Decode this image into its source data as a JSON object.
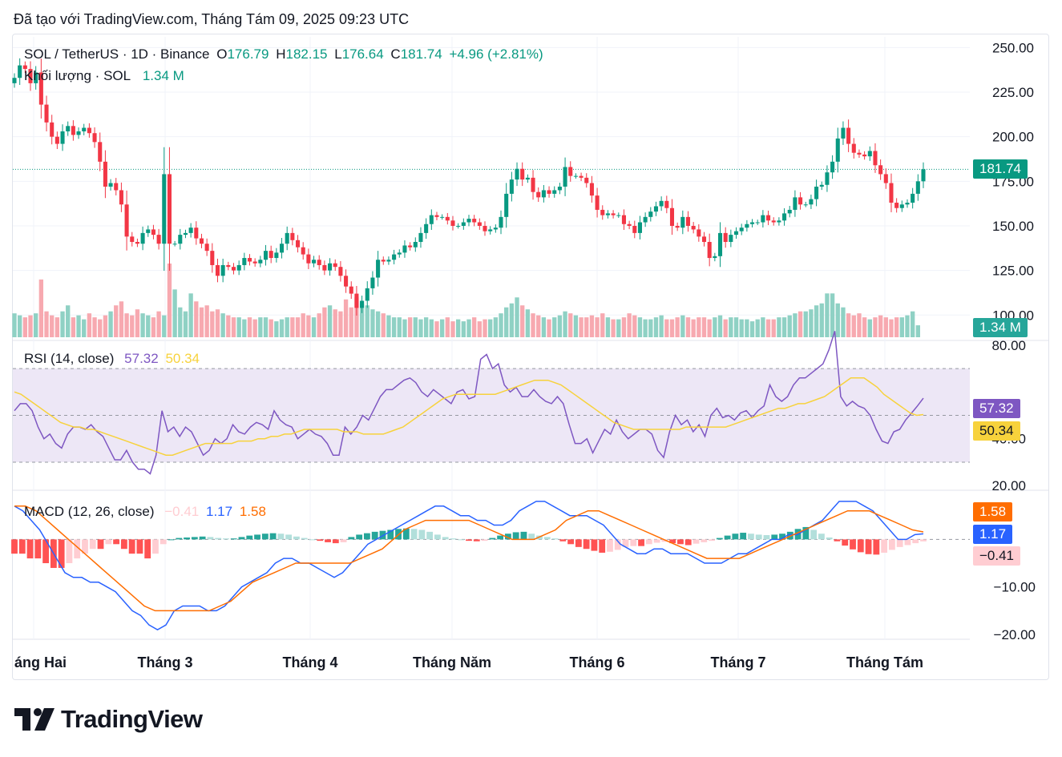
{
  "header": {
    "created_text": "Đã tạo với TradingView.com, Tháng Tám 09, 2025 09:23 UTC"
  },
  "legend": {
    "symbol": "SOL / TetherUS · 1D · Binance",
    "o_label": "O",
    "o": "176.79",
    "h_label": "H",
    "h": "182.15",
    "l_label": "L",
    "l": "176.64",
    "c_label": "C",
    "c": "181.74",
    "change": "+4.96 (+2.81%)",
    "volume_label": "Khối lượng · SOL",
    "volume": "1.34 M",
    "rsi_label": "RSI (14, close)",
    "rsi": "57.32",
    "rsi_ma": "50.34",
    "macd_label": "MACD (12, 26, close)",
    "macd_hist": "−0.41",
    "macd": "1.17",
    "macd_signal": "1.58"
  },
  "badges": {
    "price": "181.74",
    "volume": "1.34 M",
    "rsi": "57.32",
    "rsi_ma": "50.34",
    "macd_signal": "1.58",
    "macd": "1.17",
    "macd_hist": "−0.41"
  },
  "colors": {
    "up": "#089981",
    "down": "#f23645",
    "vol_up": "#8fd1c4",
    "vol_down": "#f7a9b0",
    "rsi": "#7e57c2",
    "rsi_ma": "#f7d23c",
    "macd": "#2962ff",
    "signal": "#ff6d00",
    "hist_pos_strong": "#26a69a",
    "hist_pos_weak": "#b2dfdb",
    "hist_neg_strong": "#ff5252",
    "hist_neg_weak": "#ffcdd2",
    "rsi_band": "#ede7f6"
  },
  "brand": {
    "name": "TradingView"
  },
  "chart_data": [
    {
      "type": "candlestick",
      "title": "SOL / TetherUS · 1D · Binance",
      "x_ticks": [
        "áng Hai",
        "Tháng 3",
        "Tháng 4",
        "Tháng Năm",
        "Tháng 6",
        "Tháng 7",
        "Tháng Tám"
      ],
      "y_ticks": [
        "250.00",
        "225.00",
        "200.00",
        "175.00",
        "150.00",
        "125.00",
        "100.00"
      ],
      "ylim": [
        88,
        256
      ],
      "last_close": 181.74,
      "close": [
        233,
        240,
        238,
        230,
        236,
        218,
        208,
        200,
        196,
        203,
        206,
        201,
        203,
        205,
        202,
        197,
        186,
        172,
        174,
        170,
        162,
        144,
        141,
        140,
        146,
        148,
        145,
        140,
        179,
        140,
        140,
        145,
        146,
        149,
        143,
        140,
        136,
        128,
        122,
        128,
        127,
        125,
        128,
        132,
        130,
        129,
        131,
        136,
        132,
        135,
        140,
        146,
        142,
        138,
        134,
        129,
        131,
        128,
        125,
        129,
        127,
        122,
        116,
        112,
        104,
        108,
        115,
        121,
        131,
        130,
        131,
        134,
        135,
        139,
        138,
        141,
        146,
        151,
        156,
        155,
        155,
        153,
        150,
        150,
        152,
        154,
        152,
        150,
        147,
        148,
        149,
        155,
        168,
        176,
        182,
        176,
        177,
        169,
        166,
        170,
        168,
        170,
        172,
        183,
        178,
        178,
        177,
        174,
        167,
        159,
        156,
        157,
        156,
        156,
        151,
        150,
        146,
        152,
        155,
        158,
        161,
        164,
        160,
        150,
        149,
        155,
        150,
        148,
        144,
        141,
        132,
        133,
        146,
        141,
        145,
        147,
        149,
        151,
        152,
        152,
        156,
        153,
        152,
        153,
        157,
        159,
        166,
        162,
        162,
        165,
        172,
        173,
        180,
        186,
        199,
        205,
        196,
        191,
        190,
        189,
        192,
        184,
        179,
        174,
        163,
        160,
        162,
        163,
        168,
        175,
        181.74
      ],
      "volume_m": [
        1.2,
        1.1,
        1.0,
        1.1,
        1.2,
        2.9,
        1.3,
        1.1,
        1.0,
        1.3,
        1.6,
        1.0,
        1.1,
        0.9,
        1.2,
        1.0,
        0.9,
        1.1,
        1.3,
        1.6,
        1.8,
        1.2,
        1.1,
        1.4,
        1.2,
        1.1,
        1.0,
        1.3,
        1.1,
        3.7,
        2.4,
        1.5,
        1.3,
        2.2,
        1.8,
        1.5,
        1.6,
        1.3,
        1.4,
        1.2,
        1.1,
        1.0,
        1.0,
        0.9,
        1.0,
        0.9,
        1.0,
        1.0,
        0.9,
        0.8,
        0.9,
        1.0,
        1.0,
        1.0,
        1.2,
        1.1,
        1.0,
        1.2,
        1.5,
        1.6,
        1.4,
        1.3,
        1.9,
        1.5,
        2.0,
        1.7,
        1.6,
        1.4,
        1.3,
        1.2,
        1.1,
        1.0,
        1.0,
        0.9,
        1.0,
        1.0,
        0.9,
        1.0,
        0.9,
        0.8,
        0.9,
        1.0,
        0.8,
        0.9,
        0.8,
        0.9,
        1.0,
        0.8,
        0.9,
        0.9,
        1.0,
        1.2,
        1.5,
        1.7,
        2.0,
        1.6,
        1.4,
        1.2,
        1.1,
        1.0,
        0.9,
        1.0,
        1.1,
        1.3,
        1.2,
        1.1,
        1.0,
        1.0,
        1.1,
        1.0,
        1.2,
        1.0,
        0.9,
        0.9,
        1.0,
        1.2,
        1.1,
        1.0,
        0.9,
        0.9,
        1.0,
        1.1,
        0.9,
        0.9,
        1.0,
        1.1,
        1.0,
        0.9,
        1.0,
        1.0,
        0.9,
        1.0,
        1.1,
        0.9,
        1.0,
        1.0,
        0.9,
        0.9,
        0.8,
        0.9,
        1.0,
        0.9,
        0.9,
        1.0,
        1.0,
        1.1,
        1.2,
        1.3,
        1.3,
        1.4,
        1.6,
        1.7,
        2.2,
        2.2,
        1.7,
        1.5,
        1.2,
        1.1,
        1.2,
        1.0,
        0.9,
        1.0,
        1.1,
        1.0,
        0.9,
        1.0,
        1.0,
        1.1,
        1.3,
        0.6
      ]
    },
    {
      "type": "line",
      "title": "RSI (14, close)",
      "y_ticks": [
        "80.00",
        "40.00",
        "20.00"
      ],
      "ylim": [
        18,
        82
      ],
      "band": [
        30,
        70
      ],
      "midline": 50,
      "series": [
        {
          "name": "RSI",
          "values": [
            52,
            55,
            55,
            52,
            45,
            40,
            42,
            38,
            36,
            42,
            45,
            45,
            44,
            46,
            43,
            41,
            36,
            31,
            31,
            35,
            30,
            27,
            27,
            25,
            33,
            52,
            43,
            45,
            41,
            45,
            43,
            38,
            33,
            35,
            40,
            38,
            40,
            46,
            43,
            42,
            45,
            47,
            46,
            44,
            52,
            48,
            46,
            45,
            40,
            42,
            44,
            42,
            41,
            38,
            33,
            33,
            45,
            42,
            45,
            50,
            48,
            53,
            58,
            61,
            61,
            63,
            65,
            66,
            64,
            60,
            58,
            61,
            59,
            57,
            55,
            60,
            61,
            57,
            58,
            74,
            76,
            70,
            72,
            63,
            60,
            62,
            58,
            58,
            61,
            58,
            56,
            55,
            58,
            55,
            46,
            38,
            38,
            40,
            34,
            39,
            44,
            42,
            48,
            43,
            40,
            42,
            44,
            44,
            42,
            35,
            32,
            43,
            50,
            46,
            48,
            43,
            46,
            41,
            50,
            53,
            49,
            50,
            48,
            51,
            52,
            49,
            52,
            54,
            63,
            58,
            56,
            58,
            63,
            66,
            66,
            68,
            70,
            72,
            78,
            86,
            58,
            54,
            56,
            54,
            53,
            50,
            44,
            39,
            38,
            43,
            44,
            48,
            51,
            54,
            57.32
          ]
        },
        {
          "name": "RSI MA",
          "values": [
            60,
            59,
            57,
            55,
            53,
            51,
            49,
            47,
            46,
            45,
            45,
            44,
            44,
            43,
            42,
            41,
            40,
            39,
            38,
            37,
            36,
            35,
            34,
            33,
            33,
            34,
            35,
            36,
            37,
            38,
            38,
            38,
            38,
            38,
            39,
            39,
            39,
            40,
            40,
            41,
            41,
            42,
            42,
            43,
            44,
            44,
            44,
            44,
            44,
            44,
            43,
            43,
            43,
            42,
            42,
            42,
            42,
            43,
            44,
            45,
            47,
            49,
            51,
            53,
            55,
            57,
            58,
            59,
            59,
            59,
            59,
            59,
            59,
            59,
            60,
            61,
            62,
            63,
            64,
            65,
            65,
            65,
            64,
            63,
            61,
            59,
            57,
            55,
            53,
            51,
            49,
            47,
            46,
            45,
            44,
            44,
            44,
            44,
            44,
            44,
            44,
            44,
            45,
            45,
            45,
            45,
            45,
            45,
            45,
            46,
            47,
            48,
            49,
            50,
            51,
            52,
            53,
            53,
            54,
            55,
            55,
            56,
            57,
            58,
            60,
            62,
            64,
            66,
            66,
            66,
            64,
            62,
            59,
            57,
            55,
            53,
            51,
            50,
            50.34
          ]
        }
      ]
    },
    {
      "type": "line",
      "title": "MACD (12, 26, close)",
      "y_ticks": [
        "−10.00",
        "−20.00"
      ],
      "ylim": [
        -21,
        10
      ],
      "series": [
        {
          "name": "MACD",
          "values": [
            7,
            6,
            4,
            2,
            -1,
            -4,
            -7,
            -8,
            -8,
            -9,
            -9,
            -10,
            -11,
            -13,
            -15,
            -16,
            -18,
            -19,
            -18,
            -15,
            -14,
            -14,
            -14,
            -15,
            -15,
            -14,
            -12,
            -10,
            -9,
            -8,
            -7,
            -5,
            -4,
            -4,
            -5,
            -5,
            -6,
            -7,
            -8,
            -7,
            -5,
            -3,
            -1,
            0,
            1,
            2,
            3,
            4,
            5,
            6,
            7,
            7,
            6,
            5,
            5,
            4,
            4,
            3,
            3,
            4,
            6,
            7,
            8,
            8,
            7,
            6,
            5,
            5,
            5,
            4,
            3,
            1,
            -1,
            -2,
            -3,
            -3,
            -2,
            -2,
            -3,
            -3,
            -3,
            -4,
            -5,
            -5,
            -5,
            -4,
            -3,
            -3,
            -2,
            -1,
            0,
            0,
            1,
            1,
            2,
            3,
            4,
            6,
            8,
            8,
            8,
            7,
            6,
            4,
            2,
            0,
            0,
            1,
            1.17
          ]
        },
        {
          "name": "Signal",
          "values": [
            7,
            7,
            6,
            4,
            2,
            0,
            -2,
            -4,
            -6,
            -8,
            -10,
            -12,
            -14,
            -15,
            -15,
            -15,
            -15,
            -15,
            -15,
            -14,
            -13,
            -11,
            -9,
            -8,
            -7,
            -6,
            -5,
            -5,
            -5,
            -5,
            -5,
            -5,
            -4,
            -3,
            -2,
            0,
            2,
            3,
            4,
            4,
            4,
            4,
            4,
            3,
            2,
            1,
            0,
            0,
            0,
            1,
            2,
            4,
            5,
            6,
            6,
            5,
            4,
            3,
            2,
            1,
            0,
            -1,
            -2,
            -3,
            -4,
            -4,
            -4,
            -4,
            -3,
            -2,
            -1,
            0,
            1,
            2,
            3,
            4,
            5,
            6,
            6,
            6,
            5,
            4,
            3,
            2,
            1.58
          ]
        }
      ],
      "histogram": [
        -3,
        -3,
        -4,
        -4,
        -5,
        -6,
        -6,
        -5,
        -4,
        -3,
        -2,
        -2,
        -1,
        -1,
        -2,
        -3,
        -3,
        -4,
        -3,
        -1,
        0,
        0.3,
        0.4,
        0.5,
        0.6,
        0.5,
        0.3,
        0.2,
        0.2,
        0.5,
        0.8,
        1,
        1.2,
        1.3,
        1.2,
        1,
        0.6,
        0.3,
        0,
        -0.3,
        -0.6,
        -0.8,
        -0.6,
        0.5,
        1,
        1.3,
        1.6,
        1.8,
        2,
        2.2,
        2.3,
        2.2,
        2,
        1.6,
        1,
        0.5,
        0.2,
        0,
        -0.3,
        -0.4,
        -0.3,
        0.3,
        0.8,
        1.2,
        1.5,
        1.6,
        1.2,
        0.8,
        0.5,
        0.2,
        -0.4,
        -1,
        -1.6,
        -2,
        -2.4,
        -2.8,
        -2.6,
        -2.2,
        -1.6,
        -1.4,
        -1.4,
        -1,
        -0.7,
        -0.5,
        -0.8,
        -1,
        -1.2,
        -0.9,
        -0.6,
        -0.3,
        0.3,
        0.8,
        1.2,
        1.4,
        1.2,
        1,
        0.9,
        1,
        1.2,
        1.6,
        2.2,
        2.6,
        2,
        1.2,
        0.4,
        -0.4,
        -1.3,
        -2.1,
        -2.7,
        -3.1,
        -3.2,
        -2.8,
        -2.2,
        -1.6,
        -1.2,
        -0.8,
        -0.41
      ]
    }
  ]
}
